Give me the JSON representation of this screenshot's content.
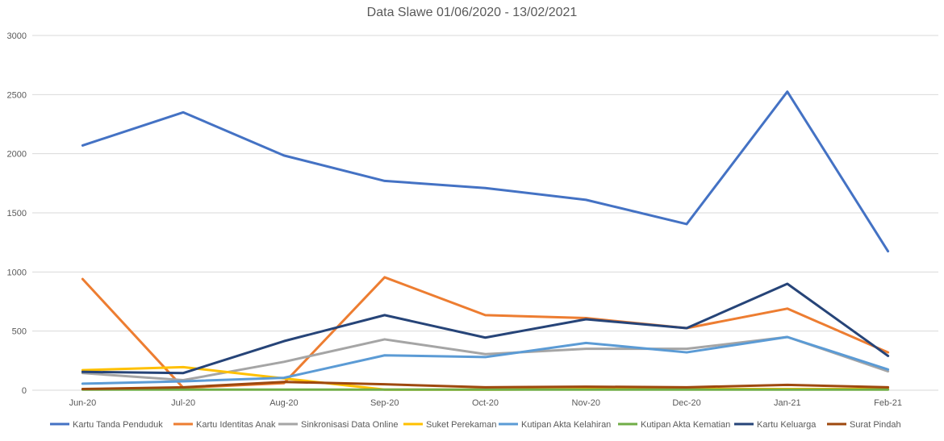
{
  "chart_data": {
    "type": "line",
    "title": "Data Slawe 01/06/2020 - 13/02/2021",
    "xlabel": "",
    "ylabel": "",
    "ylim": [
      0,
      3000
    ],
    "yticks": [
      0,
      500,
      1000,
      1500,
      2000,
      2500,
      3000
    ],
    "grid": true,
    "legend_position": "bottom",
    "categories": [
      "Jun-20",
      "Jul-20",
      "Aug-20",
      "Sep-20",
      "Oct-20",
      "Nov-20",
      "Dec-20",
      "Jan-21",
      "Feb-21"
    ],
    "series": [
      {
        "name": "Kartu Tanda Penduduk",
        "color": "#4472C4",
        "values": [
          2070,
          2350,
          1985,
          1770,
          1710,
          1610,
          1405,
          2525,
          1175
        ]
      },
      {
        "name": "Kartu Identitas Anak",
        "color": "#ED7D31",
        "values": [
          940,
          20,
          60,
          955,
          635,
          610,
          525,
          690,
          320
        ]
      },
      {
        "name": "Sinkronisasi Data Online",
        "color": "#A5A5A5",
        "values": [
          145,
          85,
          240,
          430,
          305,
          350,
          350,
          450,
          160
        ]
      },
      {
        "name": "Suket Perekaman",
        "color": "#FFC000",
        "values": [
          170,
          195,
          100,
          5,
          5,
          10,
          10,
          10,
          10
        ]
      },
      {
        "name": "Kutipan Akta Kelahiran",
        "color": "#5B9BD5",
        "values": [
          55,
          75,
          105,
          295,
          280,
          400,
          320,
          450,
          175
        ]
      },
      {
        "name": "Kutipan Akta Kematian",
        "color": "#70AD47",
        "values": [
          5,
          5,
          5,
          5,
          5,
          5,
          5,
          5,
          5
        ]
      },
      {
        "name": "Kartu Keluarga",
        "color": "#264478",
        "values": [
          155,
          145,
          415,
          635,
          445,
          600,
          525,
          900,
          290
        ]
      },
      {
        "name": "Surat Pindah",
        "color": "#9E480E",
        "values": [
          10,
          25,
          70,
          50,
          25,
          30,
          25,
          45,
          25
        ]
      }
    ]
  }
}
